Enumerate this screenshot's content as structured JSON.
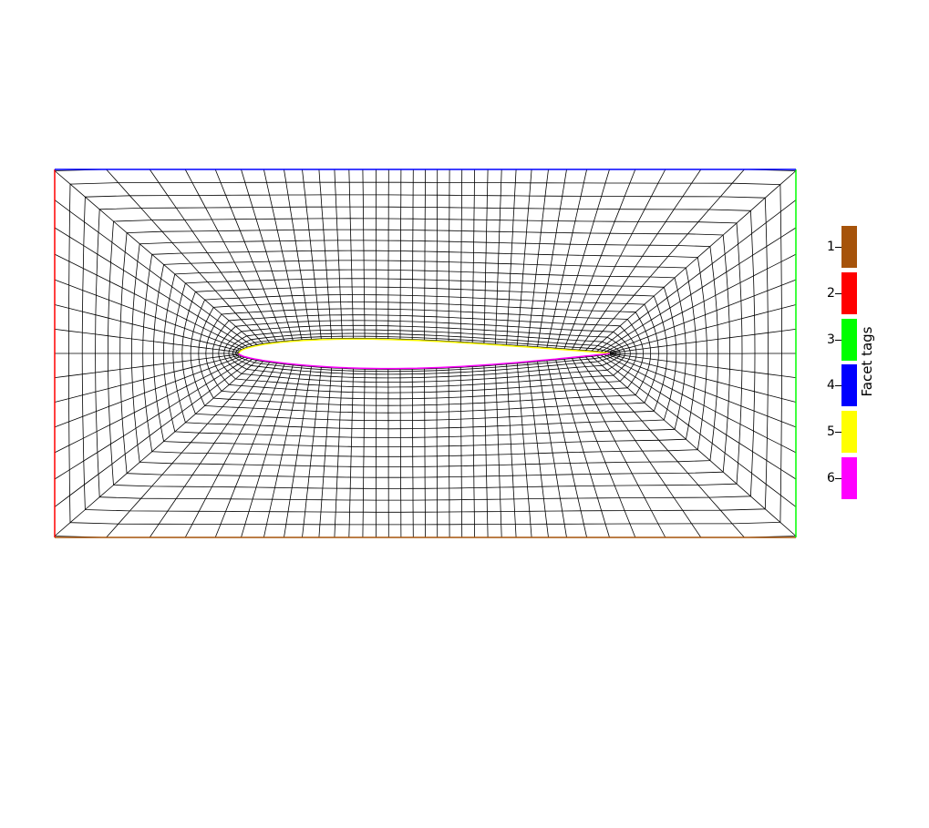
{
  "legend": {
    "title": "Facet tags",
    "entries": [
      {
        "label": "1",
        "color": "#a6530a"
      },
      {
        "label": "2",
        "color": "#ff0000"
      },
      {
        "label": "3",
        "color": "#00ff00"
      },
      {
        "label": "4",
        "color": "#0000ff"
      },
      {
        "label": "5",
        "color": "#ffff00"
      },
      {
        "label": "6",
        "color": "#ff00ff"
      }
    ]
  },
  "mesh": {
    "element_type": "quadrilateral",
    "line_color": "#000000",
    "background": "#ffffff",
    "boundaries": {
      "bottom": "1",
      "left": "2",
      "right": "3",
      "top": "4",
      "airfoil_upper": "5",
      "airfoil_lower": "6"
    }
  }
}
